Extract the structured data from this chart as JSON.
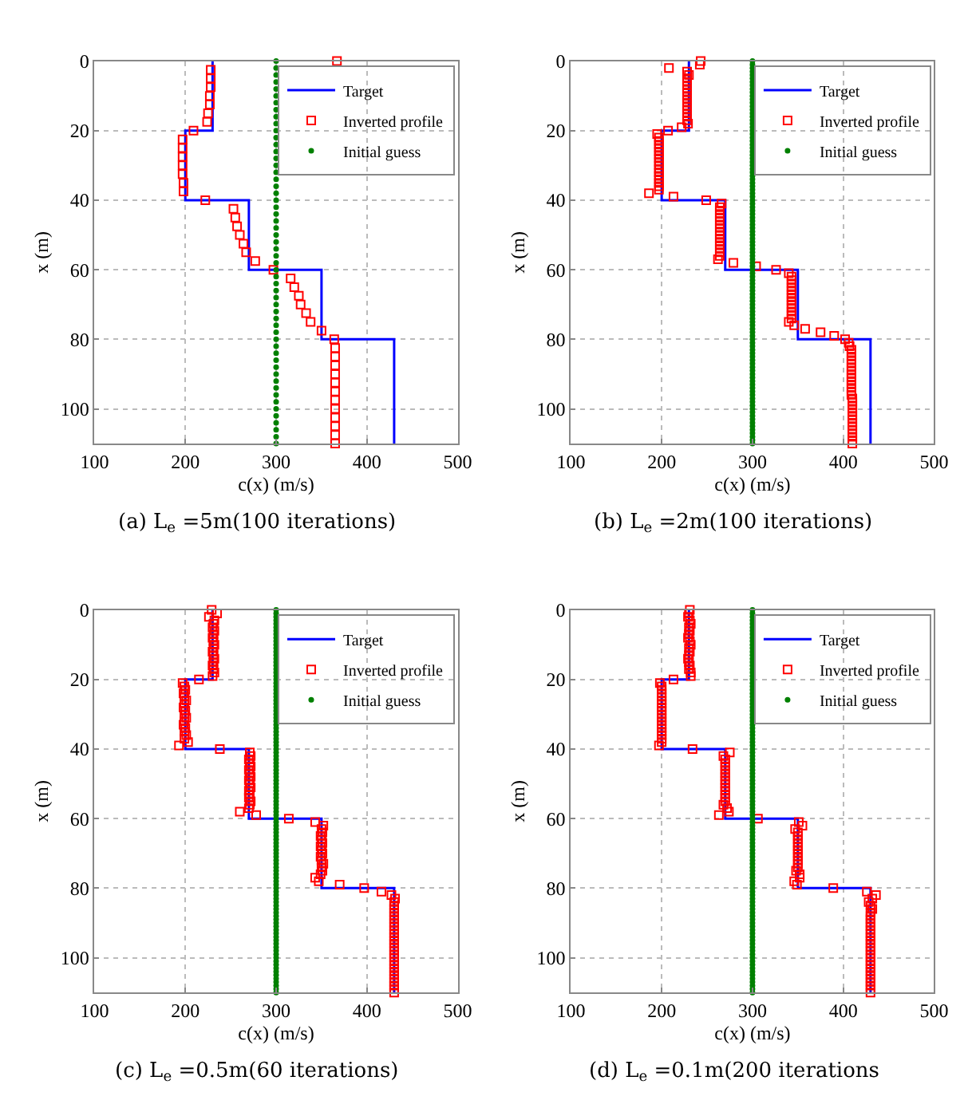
{
  "chart_data": [
    {
      "type": "scatter",
      "title": "(a) L$_{e}$ =5m(100 iterations)",
      "xlabel": "c(x) (m/s)",
      "ylabel": "x (m)",
      "xlim": [
        100,
        500
      ],
      "xticks": [
        100,
        200,
        300,
        400,
        500
      ],
      "ylim": [
        110,
        0
      ],
      "yticks": [
        0,
        20,
        40,
        60,
        80,
        100
      ],
      "grid": true,
      "legend": "top right",
      "series": [
        {
          "name": "Target",
          "type": "line",
          "marker": "none",
          "color": "#0000ff",
          "x": [
            230,
            230,
            200,
            200,
            270,
            270,
            350,
            350,
            430,
            430
          ],
          "values": [
            0,
            20,
            20,
            40,
            40,
            60,
            60,
            80,
            80,
            110
          ]
        },
        {
          "name": "Inverted profile",
          "type": "scatter",
          "marker": "square",
          "color": "#ff0000",
          "x": [
            367,
            228,
            228,
            228,
            227,
            227,
            225,
            224,
            209,
            197,
            197,
            197,
            197,
            197,
            198,
            198,
            222,
            253,
            255,
            257,
            260,
            264,
            267,
            277,
            297,
            316,
            320,
            325,
            327,
            333,
            338,
            350,
            364,
            365,
            365,
            365,
            365,
            365,
            365,
            365,
            365,
            365,
            365,
            365,
            365
          ],
          "values": [
            0,
            2.5,
            5,
            7.5,
            10,
            12.5,
            15,
            17.5,
            20,
            22.5,
            25,
            27.5,
            30,
            32.5,
            35,
            37.5,
            40,
            42.5,
            45,
            47.5,
            50,
            52.5,
            55,
            57.5,
            60,
            62.5,
            65,
            67.5,
            70,
            72.5,
            75,
            77.5,
            80,
            82.5,
            85,
            87.5,
            90,
            92.5,
            95,
            97.5,
            100,
            102.5,
            105,
            107.5,
            110
          ]
        },
        {
          "name": "Initial guess",
          "type": "scatter",
          "marker": "circle",
          "color": "#008000",
          "x": [
            300,
            300,
            300,
            300,
            300,
            300,
            300,
            300,
            300,
            300,
            300,
            300,
            300,
            300,
            300,
            300,
            300,
            300,
            300,
            300,
            300,
            300,
            300,
            300,
            300,
            300,
            300,
            300,
            300,
            300,
            300,
            300,
            300,
            300,
            300,
            300,
            300,
            300,
            300,
            300,
            300,
            300,
            300,
            300,
            300,
            300,
            300,
            300,
            300,
            300,
            300,
            300,
            300,
            300,
            300,
            300
          ],
          "values": [
            0,
            2,
            4,
            6,
            8,
            10,
            12,
            14,
            16,
            18,
            20,
            22,
            24,
            26,
            28,
            30,
            32,
            34,
            36,
            38,
            40,
            42,
            44,
            46,
            48,
            50,
            52,
            54,
            56,
            58,
            60,
            62,
            64,
            66,
            68,
            70,
            72,
            74,
            76,
            78,
            80,
            82,
            84,
            86,
            88,
            90,
            92,
            94,
            96,
            98,
            100,
            102,
            104,
            106,
            108,
            110
          ]
        }
      ]
    },
    {
      "type": "scatter",
      "title": "(b) L$_{e}$ =2m(100 iterations)",
      "xlabel": "c(x) (m/s)",
      "ylabel": "x (m)",
      "xlim": [
        100,
        500
      ],
      "xticks": [
        100,
        200,
        300,
        400,
        500
      ],
      "ylim": [
        110,
        0
      ],
      "yticks": [
        0,
        20,
        40,
        60,
        80,
        100
      ],
      "grid": true,
      "legend": "top right",
      "series": [
        {
          "name": "Target",
          "type": "line",
          "marker": "none",
          "color": "#0000ff",
          "x": [
            230,
            230,
            200,
            200,
            270,
            270,
            350,
            350,
            430,
            430
          ],
          "values": [
            0,
            20,
            20,
            40,
            40,
            60,
            60,
            80,
            80,
            110
          ]
        },
        {
          "name": "Inverted profile",
          "type": "scatter",
          "marker": "square",
          "color": "#ff0000",
          "x": [
            243,
            242,
            208,
            228,
            230,
            228,
            228,
            228,
            228,
            228,
            228,
            228,
            228,
            228,
            228,
            228,
            228,
            228,
            229,
            222,
            207,
            195,
            197,
            197,
            197,
            197,
            197,
            197,
            197,
            197,
            197,
            197,
            197,
            197,
            197,
            197,
            197,
            197,
            186,
            213,
            249,
            266,
            264,
            264,
            264,
            264,
            264,
            264,
            264,
            264,
            264,
            264,
            264,
            264,
            264,
            264,
            264,
            262,
            279,
            304,
            326,
            340,
            343,
            343,
            343,
            343,
            343,
            343,
            343,
            343,
            343,
            343,
            343,
            343,
            343,
            340,
            346,
            358,
            375,
            390,
            402,
            406,
            407,
            409,
            409,
            409,
            409,
            409,
            409,
            409,
            409,
            409,
            409,
            409,
            409,
            409,
            409,
            410,
            410,
            410,
            410,
            410,
            410,
            410,
            410,
            410,
            410,
            410,
            410,
            410,
            410
          ],
          "values": [
            0,
            1,
            2,
            3,
            4,
            5,
            6,
            7,
            8,
            9,
            10,
            11,
            12,
            13,
            14,
            15,
            16,
            17,
            18,
            19,
            20,
            21,
            22,
            23,
            24,
            25,
            26,
            27,
            28,
            29,
            30,
            31,
            32,
            33,
            34,
            35,
            36,
            37,
            38,
            39,
            40,
            41,
            42,
            43,
            44,
            45,
            46,
            47,
            48,
            49,
            50,
            51,
            52,
            53,
            54,
            55,
            56,
            57,
            58,
            59,
            60,
            61,
            62,
            63,
            64,
            65,
            66,
            67,
            68,
            69,
            70,
            71,
            72,
            73,
            74,
            75,
            76,
            77,
            78,
            79,
            80,
            81,
            82,
            83,
            84,
            85,
            86,
            87,
            88,
            89,
            90,
            91,
            92,
            93,
            94,
            95,
            96,
            97,
            98,
            99,
            100,
            101,
            102,
            103,
            104,
            105,
            106,
            107,
            108,
            109,
            110
          ]
        },
        {
          "name": "Initial guess",
          "type": "scatter",
          "marker": "circle",
          "color": "#008000",
          "x": [
            300,
            300,
            300,
            300,
            300,
            300,
            300,
            300,
            300,
            300,
            300,
            300,
            300,
            300,
            300,
            300,
            300,
            300,
            300,
            300,
            300,
            300,
            300,
            300,
            300,
            300,
            300,
            300,
            300,
            300,
            300,
            300,
            300,
            300,
            300,
            300,
            300,
            300,
            300,
            300,
            300,
            300,
            300,
            300,
            300,
            300,
            300,
            300,
            300,
            300,
            300,
            300,
            300,
            300,
            300,
            300,
            300,
            300,
            300,
            300,
            300,
            300,
            300,
            300,
            300,
            300,
            300,
            300,
            300,
            300,
            300,
            300,
            300,
            300,
            300,
            300,
            300,
            300,
            300,
            300,
            300,
            300,
            300,
            300,
            300,
            300,
            300,
            300,
            300,
            300,
            300,
            300,
            300,
            300,
            300,
            300,
            300,
            300,
            300,
            300,
            300,
            300,
            300,
            300,
            300,
            300,
            300,
            300,
            300,
            300,
            300
          ],
          "values": [
            0,
            1,
            2,
            3,
            4,
            5,
            6,
            7,
            8,
            9,
            10,
            11,
            12,
            13,
            14,
            15,
            16,
            17,
            18,
            19,
            20,
            21,
            22,
            23,
            24,
            25,
            26,
            27,
            28,
            29,
            30,
            31,
            32,
            33,
            34,
            35,
            36,
            37,
            38,
            39,
            40,
            41,
            42,
            43,
            44,
            45,
            46,
            47,
            48,
            49,
            50,
            51,
            52,
            53,
            54,
            55,
            56,
            57,
            58,
            59,
            60,
            61,
            62,
            63,
            64,
            65,
            66,
            67,
            68,
            69,
            70,
            71,
            72,
            73,
            74,
            75,
            76,
            77,
            78,
            79,
            80,
            81,
            82,
            83,
            84,
            85,
            86,
            87,
            88,
            89,
            90,
            91,
            92,
            93,
            94,
            95,
            96,
            97,
            98,
            99,
            100,
            101,
            102,
            103,
            104,
            105,
            106,
            107,
            108,
            109,
            110
          ]
        }
      ]
    },
    {
      "type": "scatter",
      "title": "(c) L$_{e}$ =0.5m(60 iterations)",
      "xlabel": "c(x) (m/s)",
      "ylabel": "x (m)",
      "xlim": [
        100,
        500
      ],
      "xticks": [
        100,
        200,
        300,
        400,
        500
      ],
      "ylim": [
        110,
        0
      ],
      "yticks": [
        0,
        20,
        40,
        60,
        80,
        100
      ],
      "grid": true,
      "legend": "top right",
      "series": [
        {
          "name": "Target",
          "type": "line",
          "marker": "none",
          "color": "#0000ff",
          "x": [
            230,
            230,
            200,
            200,
            270,
            270,
            350,
            350,
            430,
            430
          ],
          "values": [
            0,
            20,
            20,
            40,
            40,
            60,
            60,
            80,
            80,
            110
          ]
        },
        {
          "name": "Inverted profile",
          "type": "scatter",
          "marker": "square",
          "color": "#ff0000",
          "x": [
            229,
            235,
            226,
            232,
            231,
            230,
            232,
            231,
            230,
            231,
            232,
            231,
            230,
            231,
            232,
            231,
            230,
            231,
            232,
            230,
            215,
            197,
            199,
            200,
            198,
            199,
            201,
            199,
            198,
            200,
            199,
            201,
            199,
            198,
            200,
            199,
            201,
            199,
            203,
            193,
            238,
            271,
            272,
            270,
            271,
            272,
            270,
            271,
            272,
            270,
            271,
            272,
            270,
            271,
            270,
            272,
            271,
            270,
            260,
            278,
            314,
            343,
            352,
            350,
            351,
            349,
            350,
            351,
            349,
            350,
            351,
            349,
            350,
            352,
            350,
            351,
            349,
            343,
            347,
            370,
            397,
            416,
            427,
            431,
            430,
            430,
            430,
            430,
            430,
            430,
            430,
            430,
            430,
            430,
            430,
            430,
            430,
            430,
            430,
            430,
            430,
            430,
            430,
            430,
            430,
            430,
            430,
            430,
            430,
            430,
            430
          ],
          "values": [
            0,
            1,
            2,
            3,
            4,
            5,
            6,
            7,
            8,
            9,
            10,
            11,
            12,
            13,
            14,
            15,
            16,
            17,
            18,
            19,
            20,
            21,
            22,
            23,
            24,
            25,
            26,
            27,
            28,
            29,
            30,
            31,
            32,
            33,
            34,
            35,
            36,
            37,
            38,
            39,
            40,
            41,
            42,
            43,
            44,
            45,
            46,
            47,
            48,
            49,
            50,
            51,
            52,
            53,
            54,
            55,
            56,
            57,
            58,
            59,
            60,
            61,
            62,
            63,
            64,
            65,
            66,
            67,
            68,
            69,
            70,
            71,
            72,
            73,
            74,
            75,
            76,
            77,
            78,
            79,
            80,
            81,
            82,
            83,
            84,
            85,
            86,
            87,
            88,
            89,
            90,
            91,
            92,
            93,
            94,
            95,
            96,
            97,
            98,
            99,
            100,
            101,
            102,
            103,
            104,
            105,
            106,
            107,
            108,
            109,
            110
          ]
        },
        {
          "name": "Initial guess",
          "type": "scatter",
          "marker": "circle",
          "color": "#008000",
          "x": [
            300,
            300,
            300,
            300,
            300,
            300,
            300,
            300,
            300,
            300,
            300,
            300,
            300,
            300,
            300,
            300,
            300,
            300,
            300,
            300,
            300,
            300,
            300,
            300,
            300,
            300,
            300,
            300,
            300,
            300,
            300,
            300,
            300,
            300,
            300,
            300,
            300,
            300,
            300,
            300,
            300,
            300,
            300,
            300,
            300,
            300,
            300,
            300,
            300,
            300,
            300,
            300,
            300,
            300,
            300,
            300,
            300,
            300,
            300,
            300,
            300,
            300,
            300,
            300,
            300,
            300,
            300,
            300,
            300,
            300,
            300,
            300,
            300,
            300,
            300,
            300,
            300,
            300,
            300,
            300,
            300,
            300,
            300,
            300,
            300,
            300,
            300,
            300,
            300,
            300,
            300,
            300,
            300,
            300,
            300,
            300,
            300,
            300,
            300,
            300,
            300,
            300,
            300,
            300,
            300,
            300,
            300,
            300,
            300,
            300,
            300
          ],
          "values": [
            0,
            1,
            2,
            3,
            4,
            5,
            6,
            7,
            8,
            9,
            10,
            11,
            12,
            13,
            14,
            15,
            16,
            17,
            18,
            19,
            20,
            21,
            22,
            23,
            24,
            25,
            26,
            27,
            28,
            29,
            30,
            31,
            32,
            33,
            34,
            35,
            36,
            37,
            38,
            39,
            40,
            41,
            42,
            43,
            44,
            45,
            46,
            47,
            48,
            49,
            50,
            51,
            52,
            53,
            54,
            55,
            56,
            57,
            58,
            59,
            60,
            61,
            62,
            63,
            64,
            65,
            66,
            67,
            68,
            69,
            70,
            71,
            72,
            73,
            74,
            75,
            76,
            77,
            78,
            79,
            80,
            81,
            82,
            83,
            84,
            85,
            86,
            87,
            88,
            89,
            90,
            91,
            92,
            93,
            94,
            95,
            96,
            97,
            98,
            99,
            100,
            101,
            102,
            103,
            104,
            105,
            106,
            107,
            108,
            109,
            110
          ]
        }
      ]
    },
    {
      "type": "scatter",
      "title": "(d) L$_{e}$ =0.1m(200 iterations",
      "xlabel": "c(x) (m/s)",
      "ylabel": "x (m)",
      "xlim": [
        100,
        500
      ],
      "xticks": [
        100,
        200,
        300,
        400,
        500
      ],
      "ylim": [
        110,
        0
      ],
      "yticks": [
        0,
        20,
        40,
        60,
        80,
        100
      ],
      "grid": true,
      "legend": "top right",
      "series": [
        {
          "name": "Target",
          "type": "line",
          "marker": "none",
          "color": "#0000ff",
          "x": [
            230,
            230,
            200,
            200,
            270,
            270,
            350,
            350,
            430,
            430
          ],
          "values": [
            0,
            20,
            20,
            40,
            40,
            60,
            60,
            80,
            80,
            110
          ]
        },
        {
          "name": "Inverted profile",
          "type": "scatter",
          "marker": "square",
          "color": "#ff0000",
          "x": [
            231,
            230,
            229,
            231,
            232,
            230,
            231,
            230,
            229,
            231,
            232,
            230,
            231,
            230,
            229,
            230,
            231,
            230,
            232,
            232,
            213,
            198,
            200,
            200,
            200,
            200,
            200,
            200,
            200,
            200,
            200,
            200,
            200,
            200,
            200,
            200,
            200,
            200,
            200,
            197,
            234,
            275,
            268,
            270,
            270,
            270,
            270,
            270,
            270,
            270,
            270,
            270,
            270,
            270,
            270,
            270,
            268,
            272,
            274,
            263,
            306,
            351,
            355,
            347,
            350,
            350,
            350,
            350,
            350,
            350,
            350,
            350,
            350,
            350,
            350,
            348,
            352,
            352,
            346,
            349,
            389,
            426,
            436,
            432,
            428,
            430,
            432,
            430,
            430,
            430,
            430,
            430,
            430,
            430,
            430,
            430,
            430,
            430,
            430,
            430,
            430,
            430,
            430,
            430,
            430,
            430,
            430,
            430,
            430,
            430,
            430
          ],
          "values": [
            0,
            1,
            2,
            3,
            4,
            5,
            6,
            7,
            8,
            9,
            10,
            11,
            12,
            13,
            14,
            15,
            16,
            17,
            18,
            19,
            20,
            21,
            22,
            23,
            24,
            25,
            26,
            27,
            28,
            29,
            30,
            31,
            32,
            33,
            34,
            35,
            36,
            37,
            38,
            39,
            40,
            41,
            42,
            43,
            44,
            45,
            46,
            47,
            48,
            49,
            50,
            51,
            52,
            53,
            54,
            55,
            56,
            57,
            58,
            59,
            60,
            61,
            62,
            63,
            64,
            65,
            66,
            67,
            68,
            69,
            70,
            71,
            72,
            73,
            74,
            75,
            76,
            77,
            78,
            79,
            80,
            81,
            82,
            83,
            84,
            85,
            86,
            87,
            88,
            89,
            90,
            91,
            92,
            93,
            94,
            95,
            96,
            97,
            98,
            99,
            100,
            101,
            102,
            103,
            104,
            105,
            106,
            107,
            108,
            109,
            110
          ]
        },
        {
          "name": "Initial guess",
          "type": "scatter",
          "marker": "circle",
          "color": "#008000",
          "x": [
            300,
            300,
            300,
            300,
            300,
            300,
            300,
            300,
            300,
            300,
            300,
            300,
            300,
            300,
            300,
            300,
            300,
            300,
            300,
            300,
            300,
            300,
            300,
            300,
            300,
            300,
            300,
            300,
            300,
            300,
            300,
            300,
            300,
            300,
            300,
            300,
            300,
            300,
            300,
            300,
            300,
            300,
            300,
            300,
            300,
            300,
            300,
            300,
            300,
            300,
            300,
            300,
            300,
            300,
            300,
            300,
            300,
            300,
            300,
            300,
            300,
            300,
            300,
            300,
            300,
            300,
            300,
            300,
            300,
            300,
            300,
            300,
            300,
            300,
            300,
            300,
            300,
            300,
            300,
            300,
            300,
            300,
            300,
            300,
            300,
            300,
            300,
            300,
            300,
            300,
            300,
            300,
            300,
            300,
            300,
            300,
            300,
            300,
            300,
            300,
            300,
            300,
            300,
            300,
            300,
            300,
            300,
            300,
            300,
            300,
            300
          ],
          "values": [
            0,
            1,
            2,
            3,
            4,
            5,
            6,
            7,
            8,
            9,
            10,
            11,
            12,
            13,
            14,
            15,
            16,
            17,
            18,
            19,
            20,
            21,
            22,
            23,
            24,
            25,
            26,
            27,
            28,
            29,
            30,
            31,
            32,
            33,
            34,
            35,
            36,
            37,
            38,
            39,
            40,
            41,
            42,
            43,
            44,
            45,
            46,
            47,
            48,
            49,
            50,
            51,
            52,
            53,
            54,
            55,
            56,
            57,
            58,
            59,
            60,
            61,
            62,
            63,
            64,
            65,
            66,
            67,
            68,
            69,
            70,
            71,
            72,
            73,
            74,
            75,
            76,
            77,
            78,
            79,
            80,
            81,
            82,
            83,
            84,
            85,
            86,
            87,
            88,
            89,
            90,
            91,
            92,
            93,
            94,
            95,
            96,
            97,
            98,
            99,
            100,
            101,
            102,
            103,
            104,
            105,
            106,
            107,
            108,
            109,
            110
          ]
        }
      ]
    }
  ]
}
